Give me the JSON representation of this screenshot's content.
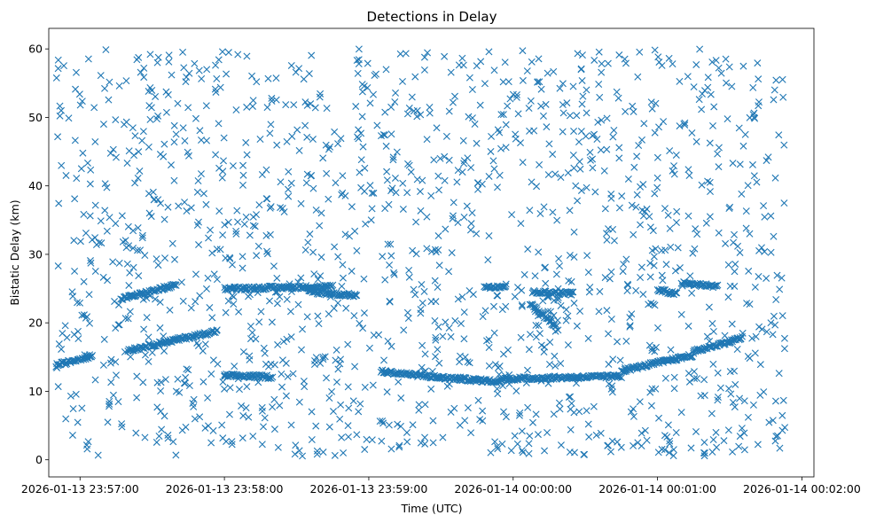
{
  "chart_data": {
    "type": "scatter",
    "title": "Detections in Delay",
    "xlabel": "Time (UTC)",
    "ylabel": "Bistatic Delay (km)",
    "x_ticks": [
      "2026-01-13 23:57:00",
      "2026-01-13 23:58:00",
      "2026-01-13 23:59:00",
      "2026-01-14 00:00:00",
      "2026-01-14 00:01:00",
      "2026-01-14 00:02:00"
    ],
    "y_ticks": [
      "0",
      "10",
      "20",
      "30",
      "40",
      "50",
      "60"
    ],
    "xlim": [
      "2026-01-13 23:56:47",
      "2026-01-14 00:02:05"
    ],
    "ylim": [
      -2.5,
      63
    ],
    "grid": false,
    "marker": "x",
    "color": "#1f77b4",
    "data_range": {
      "x_start": "2026-01-13 23:56:50",
      "x_end": "2026-01-14 00:01:53",
      "y_min": 0.5,
      "y_max": 60
    },
    "tracks": [
      {
        "x": [
          "2026-01-13 23:56:50",
          "2026-01-13 23:57:05"
        ],
        "y": [
          13.8,
          15.2
        ]
      },
      {
        "x": [
          "2026-01-13 23:57:20",
          "2026-01-13 23:57:57"
        ],
        "y": [
          16.0,
          18.8
        ]
      },
      {
        "x": [
          "2026-01-13 23:57:17",
          "2026-01-13 23:57:40"
        ],
        "y": [
          23.5,
          25.5
        ]
      },
      {
        "x": [
          "2026-01-13 23:58:00",
          "2026-01-13 23:58:20"
        ],
        "y": [
          12.3,
          12.1
        ]
      },
      {
        "x": [
          "2026-01-13 23:58:00",
          "2026-01-13 23:58:45"
        ],
        "y": [
          25.0,
          25.3
        ]
      },
      {
        "x": [
          "2026-01-13 23:58:35",
          "2026-01-13 23:58:55"
        ],
        "y": [
          24.5,
          24.0
        ]
      },
      {
        "x": [
          "2026-01-13 23:59:05",
          "2026-01-13 23:59:30"
        ],
        "y": [
          12.9,
          12.0
        ]
      },
      {
        "x": [
          "2026-01-13 23:59:30",
          "2026-01-13 23:59:55"
        ],
        "y": [
          12.0,
          11.4
        ]
      },
      {
        "x": [
          "2026-01-13 23:59:48",
          "2026-01-13 23:59:57"
        ],
        "y": [
          25.3,
          25.3
        ]
      },
      {
        "x": [
          "2026-01-14 00:00:08",
          "2026-01-14 00:00:25"
        ],
        "y": [
          24.5,
          24.3
        ]
      },
      {
        "x": [
          "2026-01-14 00:00:07",
          "2026-01-14 00:00:18"
        ],
        "y": [
          22.8,
          19.4
        ]
      },
      {
        "x": [
          "2026-01-13 23:59:55",
          "2026-01-14 00:00:45"
        ],
        "y": [
          11.8,
          12.2
        ]
      },
      {
        "x": [
          "2026-01-14 00:00:45",
          "2026-01-14 00:01:15"
        ],
        "y": [
          13.0,
          15.3
        ]
      },
      {
        "x": [
          "2026-01-14 00:01:15",
          "2026-01-14 00:01:35"
        ],
        "y": [
          15.8,
          17.8
        ]
      },
      {
        "x": [
          "2026-01-14 00:01:00",
          "2026-01-14 00:01:08"
        ],
        "y": [
          24.8,
          24.2
        ]
      },
      {
        "x": [
          "2026-01-14 00:01:10",
          "2026-01-14 00:01:25"
        ],
        "y": [
          25.8,
          25.3
        ]
      }
    ]
  }
}
